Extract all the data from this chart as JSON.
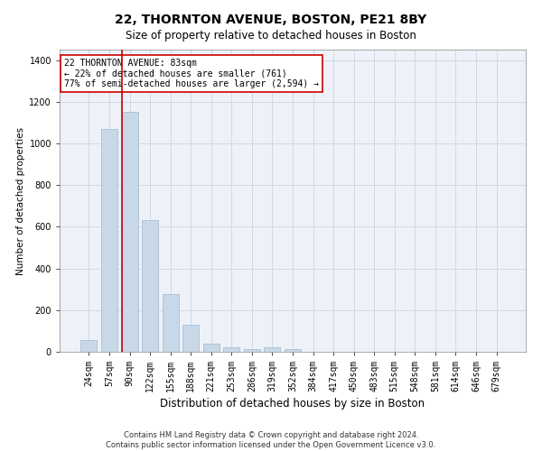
{
  "title1": "22, THORNTON AVENUE, BOSTON, PE21 8BY",
  "title2": "Size of property relative to detached houses in Boston",
  "xlabel": "Distribution of detached houses by size in Boston",
  "ylabel": "Number of detached properties",
  "categories": [
    "24sqm",
    "57sqm",
    "90sqm",
    "122sqm",
    "155sqm",
    "188sqm",
    "221sqm",
    "253sqm",
    "286sqm",
    "319sqm",
    "352sqm",
    "384sqm",
    "417sqm",
    "450sqm",
    "483sqm",
    "515sqm",
    "548sqm",
    "581sqm",
    "614sqm",
    "646sqm",
    "679sqm"
  ],
  "values": [
    55,
    1070,
    1150,
    630,
    275,
    130,
    40,
    20,
    15,
    20,
    13,
    0,
    0,
    0,
    0,
    0,
    0,
    0,
    0,
    0,
    0
  ],
  "bar_color": "#c8d8e8",
  "bar_edge_color": "#a0b8cc",
  "vline_color": "#cc0000",
  "annotation_text": "22 THORNTON AVENUE: 83sqm\n← 22% of detached houses are smaller (761)\n77% of semi-detached houses are larger (2,594) →",
  "annotation_box_color": "#ffffff",
  "annotation_box_edge": "#cc0000",
  "ylim": [
    0,
    1450
  ],
  "yticks": [
    0,
    200,
    400,
    600,
    800,
    1000,
    1200,
    1400
  ],
  "grid_color": "#d0d8e8",
  "background_color": "#eef2f8",
  "footer": "Contains HM Land Registry data © Crown copyright and database right 2024.\nContains public sector information licensed under the Open Government Licence v3.0.",
  "title1_fontsize": 10,
  "title2_fontsize": 8.5,
  "ylabel_fontsize": 7.5,
  "xlabel_fontsize": 8.5,
  "tick_fontsize": 7,
  "annotation_fontsize": 7,
  "footer_fontsize": 6
}
